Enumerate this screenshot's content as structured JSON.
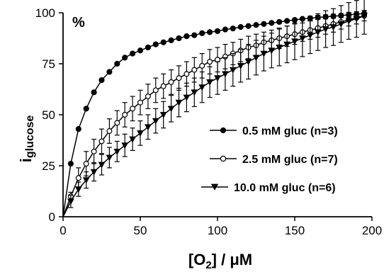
{
  "chart_data": {
    "type": "line",
    "xlabel": "[O2] / μM",
    "xlabel_main": "[O",
    "xlabel_sub": "2",
    "xlabel_rest": "] / μM",
    "ylabel_main": "i",
    "ylabel_sub": "glucose",
    "y_unit_annotation": "%",
    "xlim": [
      0,
      200
    ],
    "ylim": [
      0,
      100
    ],
    "xticks": [
      0,
      50,
      100,
      150,
      200
    ],
    "yticks": [
      0,
      25,
      50,
      75,
      100
    ],
    "grid": false,
    "legend_position": "center-right",
    "x": [
      0,
      5,
      10,
      15,
      20,
      25,
      30,
      35,
      40,
      45,
      50,
      55,
      60,
      65,
      70,
      75,
      80,
      85,
      90,
      95,
      100,
      105,
      110,
      115,
      120,
      125,
      130,
      135,
      140,
      145,
      150,
      155,
      160,
      165,
      170,
      175,
      180,
      185,
      190,
      195
    ],
    "series": [
      {
        "name": "0.5 mM gluc (n=3)",
        "marker": "filled-circle",
        "values": [
          0,
          26,
          43,
          53,
          61,
          67,
          71,
          75,
          78,
          80,
          81.5,
          83,
          84.5,
          85.5,
          86.5,
          87.5,
          88.5,
          89,
          90,
          90.5,
          91,
          91.8,
          92.3,
          93,
          93.5,
          94,
          94.5,
          95,
          95.5,
          96,
          96.5,
          97,
          97.3,
          97.7,
          98,
          98.3,
          98.6,
          99,
          99.3,
          99.6
        ],
        "errors": [
          0,
          0,
          0,
          0,
          0,
          0,
          0,
          0,
          0,
          0,
          0,
          0,
          0,
          0,
          0,
          0,
          0,
          0,
          0,
          0,
          0,
          0,
          0,
          0,
          0,
          0,
          0,
          0,
          0,
          0,
          0,
          0,
          1,
          1,
          1,
          1,
          1,
          1.2,
          1.2,
          1.5
        ]
      },
      {
        "name": "2.5 mM gluc (n=7)",
        "marker": "open-circle",
        "values": [
          0,
          10,
          19,
          26,
          32,
          37,
          42,
          46,
          50,
          53,
          56,
          59,
          62,
          64,
          66,
          68,
          70,
          72,
          74,
          76,
          77,
          78.5,
          80,
          81.5,
          83,
          84,
          85.5,
          86.5,
          87.5,
          88.5,
          89.5,
          90.5,
          91.5,
          92.5,
          93.5,
          94.5,
          95.5,
          96.5,
          97.5,
          98.5
        ],
        "errors": [
          0,
          2,
          5,
          6,
          6,
          6,
          6,
          6,
          6,
          6,
          6,
          6,
          6,
          6,
          6,
          6,
          6,
          6,
          6,
          6,
          6,
          6,
          5.5,
          5.5,
          5.5,
          5.5,
          5,
          5,
          5,
          5,
          5,
          4.5,
          4.5,
          4.5,
          4,
          4,
          3.5,
          3,
          3,
          2.5
        ]
      },
      {
        "name": "10.0 mM gluc (n=6)",
        "marker": "filled-triangle-down",
        "values": [
          0,
          7.5,
          13.5,
          18,
          22,
          25.5,
          29,
          32,
          35,
          38,
          41,
          44,
          47,
          50,
          53,
          56,
          58.5,
          61,
          63.5,
          66,
          68,
          70,
          72,
          74,
          76,
          78,
          80,
          81.5,
          83,
          84.5,
          86,
          87.5,
          89,
          90.5,
          92,
          93,
          94.5,
          96,
          97,
          98.5
        ],
        "errors": [
          0,
          3,
          3.5,
          4,
          4.5,
          5,
          5,
          5,
          5.5,
          5.5,
          6,
          6,
          6,
          6.5,
          6.5,
          7,
          7,
          7,
          7.5,
          7.5,
          8,
          8,
          8,
          8,
          8.5,
          8.5,
          8.5,
          8.5,
          9,
          9,
          9,
          9,
          9,
          9,
          9,
          9,
          9,
          9,
          9,
          9
        ]
      }
    ]
  }
}
